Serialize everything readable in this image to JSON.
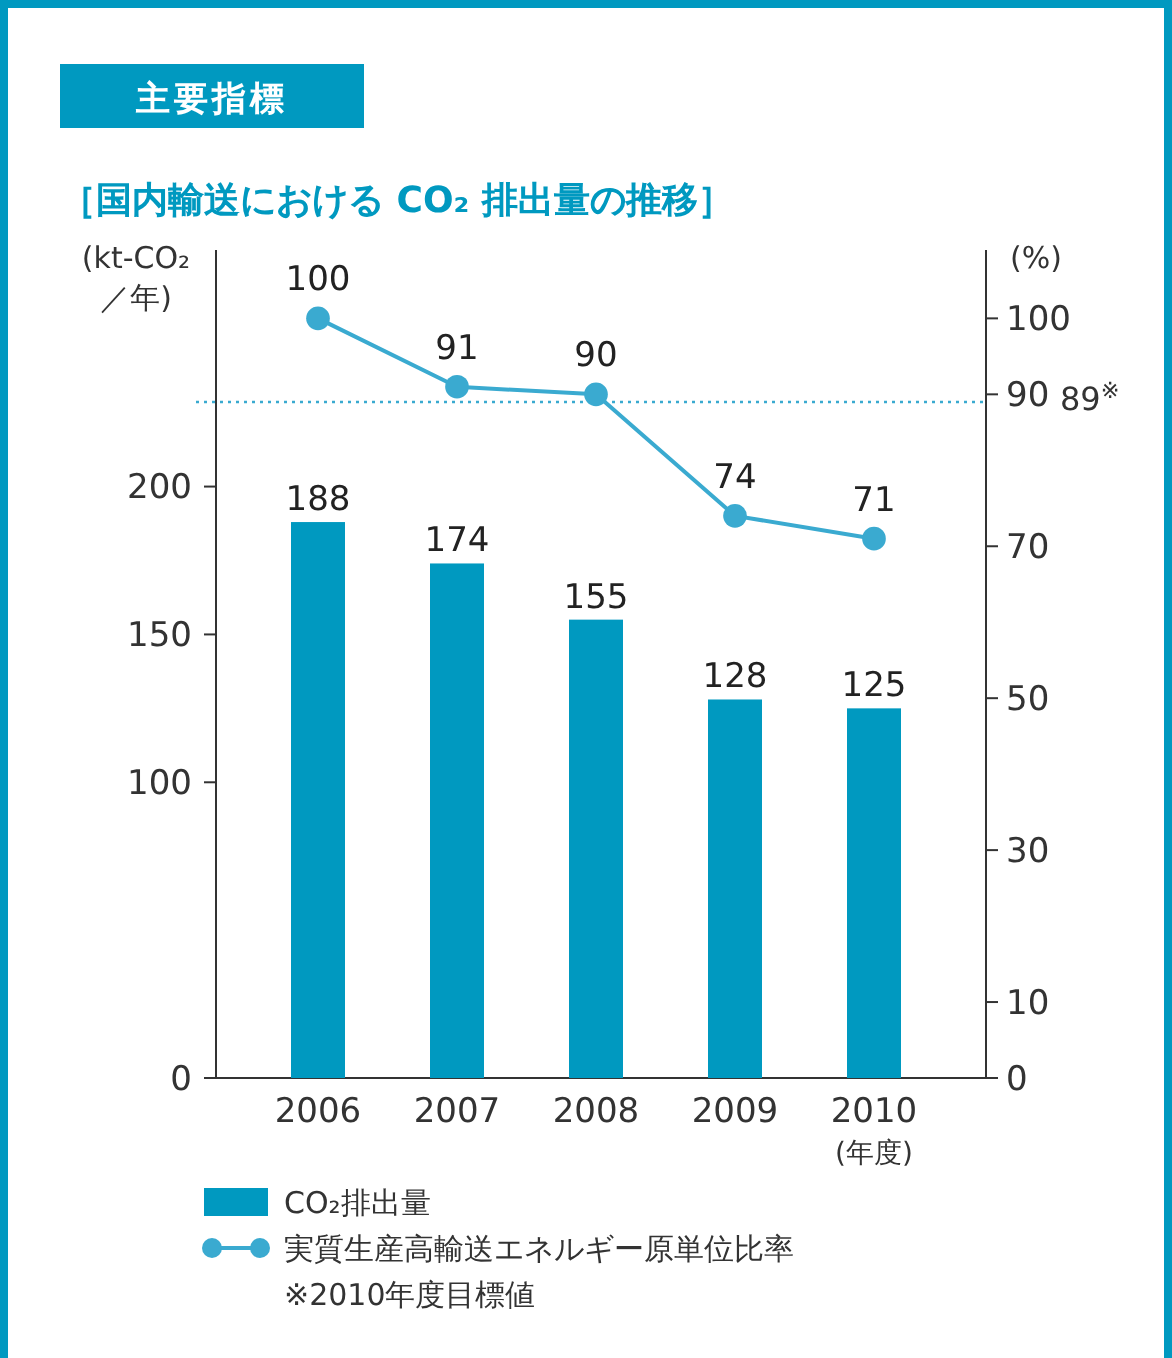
{
  "chart_data": {
    "type": "bar",
    "title": "主要指標",
    "subtitle": "［国内輸送における CO₂ 排出量の推移］",
    "xlabel": "(年度)",
    "ylabel": "(kt-CO₂ ／年)",
    "y2label": "(%)",
    "categories": [
      "2006",
      "2007",
      "2008",
      "2009",
      "2010"
    ],
    "series": [
      {
        "name": "CO₂排出量",
        "color": "#0099c0",
        "values": [
          188,
          174,
          155,
          128,
          125
        ]
      },
      {
        "name": "実質生産高輸送エネルギー原単位比率",
        "type": "line",
        "axis": "y2",
        "color": "#3aaad0",
        "values": [
          100,
          91,
          90,
          74,
          71
        ]
      }
    ],
    "ylim": [
      0,
      280
    ],
    "yticks": [
      0,
      100,
      150,
      200
    ],
    "y2lim": [
      0,
      109
    ],
    "y2ticks": [
      0,
      10,
      30,
      50,
      70,
      90,
      100
    ],
    "ref_lines": [
      {
        "axis": "y2",
        "value": 89,
        "label": "89$^{※}$",
        "color": "#3aaad0",
        "line_style": "dotted"
      }
    ],
    "annotations": [
      "※2010年度目標値"
    ],
    "data_labels": true,
    "legend": "bottom",
    "marker": "circle",
    "grid": false
  }
}
